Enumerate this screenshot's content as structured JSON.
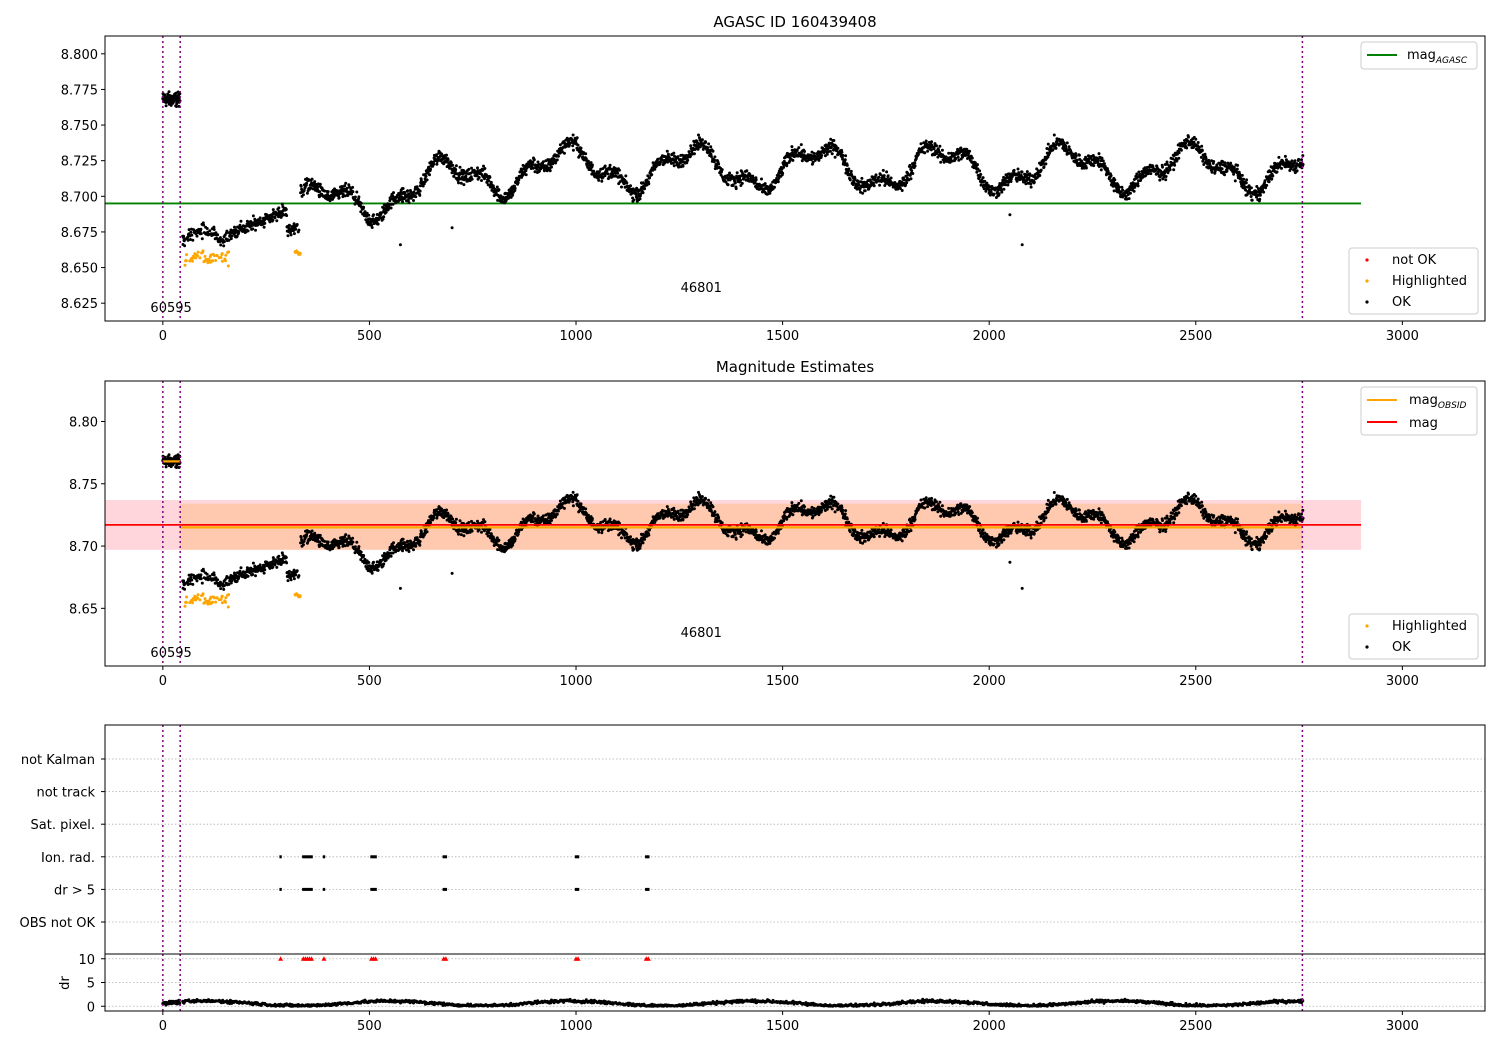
{
  "colors": {
    "ok": "#000000",
    "highlighted": "#ffa500",
    "not_ok": "#ff0000",
    "mag_agasc": "#008000",
    "mag_obsid": "#ffa500",
    "mag": "#ff0000",
    "obs_boundary": "#800080",
    "grid": "#b0b0b0"
  },
  "chart_data": [
    {
      "type": "scatter",
      "title": "AGASC ID 160439408",
      "xlim": [
        -140,
        3200
      ],
      "ylim": [
        8.6125,
        8.8125
      ],
      "x_ticks": [
        0,
        500,
        1000,
        1500,
        2000,
        2500,
        3000
      ],
      "y_ticks": [
        8.625,
        8.65,
        8.675,
        8.7,
        8.725,
        8.75,
        8.775,
        8.8
      ],
      "legend_lines": {
        "position": "upper right",
        "entries": [
          {
            "label": "mag",
            "sub": "AGASC"
          }
        ]
      },
      "legend_points": {
        "position": "lower right",
        "entries": [
          "not OK",
          "Highlighted",
          "OK"
        ]
      },
      "mag_agasc": 8.695,
      "obsid_labels": [
        {
          "text": "60595",
          "x": 20
        },
        {
          "text": "46801",
          "x": 1400
        }
      ],
      "obs_boundaries": [
        0,
        42,
        2758
      ],
      "series": [
        {
          "name": "OK",
          "x_range": [
            0,
            2760
          ],
          "trend": "first observation ~8.768; drop to ~8.670 at 50, rises to ~8.715-8.735 with quasi-periodic oscillations (amplitude ~0.02) through 2760"
        },
        {
          "name": "Highlighted",
          "x_range": [
            50,
            340
          ],
          "y_range": [
            8.645,
            8.665
          ]
        },
        {
          "name": "not OK",
          "count": 0
        }
      ]
    },
    {
      "type": "scatter",
      "title": "Magnitude Estimates",
      "xlim": [
        -140,
        3200
      ],
      "ylim": [
        8.6037,
        8.8325
      ],
      "x_ticks": [
        0,
        500,
        1000,
        1500,
        2000,
        2500,
        3000
      ],
      "y_ticks": [
        8.65,
        8.7,
        8.75,
        8.8
      ],
      "legend_lines": {
        "position": "upper right",
        "entries": [
          {
            "label": "mag",
            "sub": "OBSID"
          },
          {
            "label": "mag",
            "sub": ""
          }
        ]
      },
      "legend_points": {
        "position": "lower right",
        "entries": [
          "Highlighted",
          "OK"
        ]
      },
      "mag": 8.717,
      "mag_band": [
        8.697,
        8.737
      ],
      "mag_obsid": [
        {
          "x_range": [
            0,
            42
          ],
          "value": 8.768
        },
        {
          "x_range": [
            42,
            2758
          ],
          "value": 8.715,
          "band": [
            8.697,
            8.734
          ]
        }
      ],
      "obsid_labels": [
        {
          "text": "60595",
          "x": 20
        },
        {
          "text": "46801",
          "x": 1400
        }
      ],
      "obs_boundaries": [
        0,
        42,
        2758
      ]
    },
    {
      "type": "scatter",
      "xlim": [
        -140,
        3200
      ],
      "flag_rows": [
        "not Kalman",
        "not track",
        "Sat. pixel.",
        "Ion. rad.",
        "dr > 5",
        "OBS not OK"
      ],
      "flag_positions": [
        {
          "flags": [
            "Ion. rad.",
            "dr > 5"
          ],
          "x": [
            285,
            340,
            345,
            350,
            355,
            360,
            390,
            505,
            510,
            515,
            680,
            685,
            1000,
            1005,
            1170,
            1175
          ]
        }
      ],
      "dr": {
        "ylabel": "dr",
        "y_ticks": [
          0,
          5,
          10
        ],
        "ylim": [
          -1,
          11
        ],
        "typical_range": [
          0,
          2
        ],
        "clipped_value": 10,
        "clipped_x": [
          285,
          340,
          345,
          350,
          355,
          360,
          390,
          505,
          510,
          515,
          680,
          685,
          1000,
          1005,
          1170,
          1175
        ]
      },
      "x_ticks": [
        0,
        500,
        1000,
        1500,
        2000,
        2500,
        3000
      ],
      "obs_boundaries": [
        0,
        42,
        2758
      ]
    }
  ]
}
